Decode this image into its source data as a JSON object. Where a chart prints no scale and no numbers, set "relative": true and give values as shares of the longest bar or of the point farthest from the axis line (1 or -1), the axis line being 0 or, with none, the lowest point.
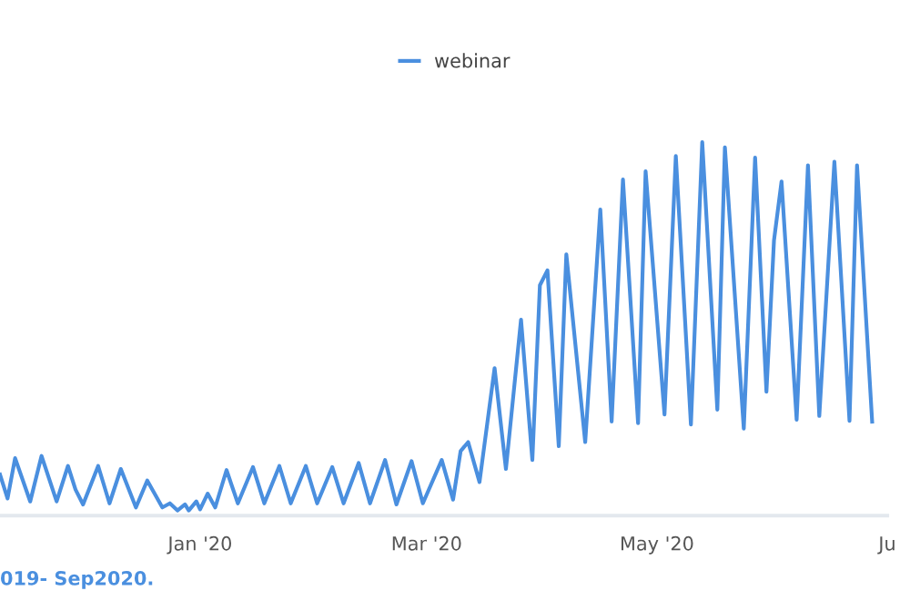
{
  "chart_data": {
    "type": "line",
    "relative": true,
    "legend": "top",
    "grid": false,
    "marker": "none",
    "line_style": "solid",
    "annotations": [
      "019- Sep2020."
    ],
    "xlim": [
      "2019-11-09",
      "2020-07-01"
    ],
    "xticks": [
      {
        "value": "2020-01-01",
        "label": "Jan '20"
      },
      {
        "value": "2020-03-01",
        "label": "Mar '20"
      },
      {
        "value": "2020-05-01",
        "label": "May '20"
      },
      {
        "value": "2020-07-01",
        "label": "Ju"
      }
    ],
    "series": [
      {
        "name": "webinar",
        "color": "#4a8fdf",
        "x": [
          "2019-11-09",
          "2019-11-11",
          "2019-11-13",
          "2019-11-17",
          "2019-11-20",
          "2019-11-24",
          "2019-11-27",
          "2019-11-29",
          "2019-12-01",
          "2019-12-05",
          "2019-12-08",
          "2019-12-11",
          "2019-12-15",
          "2019-12-18",
          "2019-12-22",
          "2019-12-24",
          "2019-12-26",
          "2019-12-28",
          "2019-12-29",
          "2019-12-31",
          "2020-01-01",
          "2020-01-03",
          "2020-01-05",
          "2020-01-08",
          "2020-01-11",
          "2020-01-15",
          "2020-01-18",
          "2020-01-22",
          "2020-01-25",
          "2020-01-29",
          "2020-02-01",
          "2020-02-05",
          "2020-02-08",
          "2020-02-12",
          "2020-02-15",
          "2020-02-19",
          "2020-02-22",
          "2020-02-26",
          "2020-02-29",
          "2020-03-05",
          "2020-03-08",
          "2020-03-10",
          "2020-03-12",
          "2020-03-15",
          "2020-03-19",
          "2020-03-22",
          "2020-03-26",
          "2020-03-29",
          "2020-03-31",
          "2020-04-02",
          "2020-04-05",
          "2020-04-07",
          "2020-04-12",
          "2020-04-16",
          "2020-04-19",
          "2020-04-22",
          "2020-04-26",
          "2020-04-28",
          "2020-05-03",
          "2020-05-06",
          "2020-05-10",
          "2020-05-13",
          "2020-05-17",
          "2020-05-19",
          "2020-05-24",
          "2020-05-27",
          "2020-05-30",
          "2020-06-01",
          "2020-06-03",
          "2020-06-07",
          "2020-06-10",
          "2020-06-13",
          "2020-06-17",
          "2020-06-21",
          "2020-06-23",
          "2020-06-27"
        ],
        "values": [
          0.11,
          0.046,
          0.154,
          0.038,
          0.16,
          0.038,
          0.133,
          0.07,
          0.03,
          0.133,
          0.033,
          0.125,
          0.022,
          0.094,
          0.022,
          0.033,
          0.014,
          0.03,
          0.014,
          0.038,
          0.017,
          0.059,
          0.022,
          0.122,
          0.033,
          0.13,
          0.033,
          0.133,
          0.033,
          0.133,
          0.033,
          0.13,
          0.033,
          0.141,
          0.033,
          0.149,
          0.03,
          0.146,
          0.033,
          0.149,
          0.043,
          0.173,
          0.197,
          0.09,
          0.395,
          0.125,
          0.525,
          0.149,
          0.617,
          0.657,
          0.186,
          0.7,
          0.197,
          0.82,
          0.252,
          0.9,
          0.248,
          0.922,
          0.271,
          0.963,
          0.244,
          1,
          0.284,
          0.986,
          0.233,
          0.959,
          0.332,
          0.737,
          0.895,
          0.257,
          0.938,
          0.267,
          0.948,
          0.254,
          0.938,
          0.252
        ]
      }
    ]
  }
}
